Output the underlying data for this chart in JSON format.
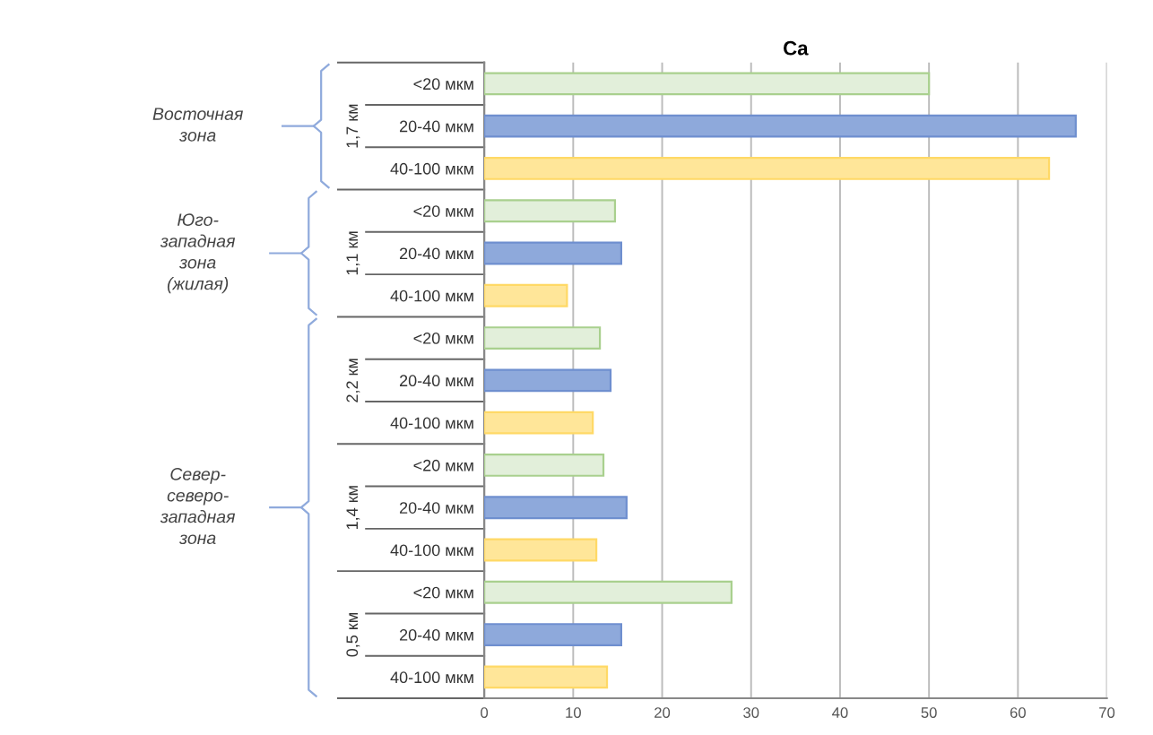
{
  "chart_data": {
    "type": "bar",
    "orientation": "horizontal",
    "title": "Ca",
    "categories": [
      "<20 мкм",
      "20-40 мкм",
      "40-100 мкм",
      "<20 мкм",
      "20-40 мкм",
      "40-100 мкм",
      "<20 мкм",
      "20-40 мкм",
      "40-100 мкм",
      "<20 мкм",
      "20-40 мкм",
      "40-100 мкм",
      "<20 мкм",
      "20-40 мкм",
      "40-100 мкм"
    ],
    "values": [
      50,
      66.5,
      63.5,
      14.7,
      15.4,
      9.3,
      13,
      14.2,
      12.2,
      13.4,
      16,
      12.6,
      27.8,
      15.4,
      13.8
    ],
    "colors": [
      "#e2efda",
      "#8ea9db",
      "#ffe699",
      "#e2efda",
      "#8ea9db",
      "#ffe699",
      "#e2efda",
      "#8ea9db",
      "#ffe699",
      "#e2efda",
      "#8ea9db",
      "#ffe699",
      "#e2efda",
      "#8ea9db",
      "#ffe699"
    ],
    "xlim": [
      0,
      70
    ],
    "xticks": [
      0,
      10,
      20,
      30,
      40,
      50,
      60,
      70
    ],
    "grid": "x",
    "annotations": [
      "1,7 км",
      "1,1 км",
      "2,2 км",
      "1,4 км",
      "0,5 км",
      "Восточная\nзона",
      "Юго-\nзападная\nзона\n(жилая)",
      "Север-\nсеверо-\nзападная\nзона"
    ]
  }
}
